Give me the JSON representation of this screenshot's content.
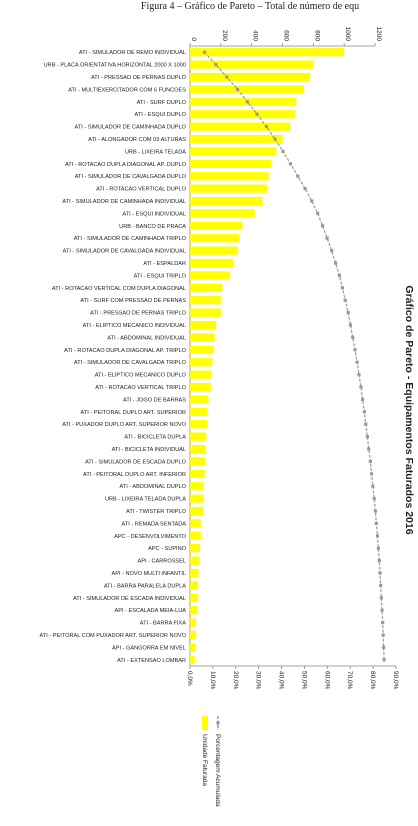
{
  "caption": "Figura 4 – Gráfico de Pareto – Total de número de equ",
  "chart_data": {
    "type": "pareto",
    "title": "Gráfico de Pareto - Equipamentos Faturados 2016",
    "categories": [
      "ATI - SIMULADOR DE REMO INDIVIDUAL",
      "URB - PLACA ORIENTATIVA HORIZONTAL 2000 X 1000",
      "ATI - PRESSAO DE PERNAS DUPLO",
      "ATI - MULTIEXERCITADOR COM 6 FUNCOES",
      "ATI - SURF DUPLO",
      "ATI - ESQUI DUPLO",
      "ATI - SIMULADOR DE CAMINHADA DUPLO",
      "ATI - ALONGADOR COM 03 ALTURAS",
      "URB - LIXEIRA TELADA",
      "ATI - ROTACAO DUPLA DIAGONAL AP. DUPLO",
      "ATI - SIMULADOR DE CAVALGADA DUPLO",
      "ATI - ROTACAO VERTICAL DUPLO",
      "ATI - SIMULADOR DE CAMINHADA INDIVIDUAL",
      "ATI - ESQUI INDIVIDUAL",
      "URB - BANCO DE PRACA",
      "ATI - SIMULADOR DE CAMINHADA TRIPLO",
      "ATI - SIMULADOR DE CAVALGADA INDIVIDUAL",
      "ATI - ESPALDAR",
      "ATI - ESQUI TRIPLO",
      "ATI - ROTACAO VERTICAL COM DUPLA DIAGONAL",
      "ATI - SURF COM PRESSAO DE PERNAS",
      "ATI - PRESSAO DE PERNAS TRIPLO",
      "ATI - ELIPTICO MECANICO INDIVIDUAL",
      "ATI - ABDOMINAL INDIVIDUAL",
      "ATI - ROTACAO DUPLA DIAGONAL AP. TRIPLO",
      "ATI - SIMULADOR DE CAVALGADA TRIPLO",
      "ATI - ELIPTICO MECANICO DUPLO",
      "ATI - ROTACAO VERTICAL TRIPLO",
      "ATI - JOGO DE BARRAS",
      "ATI - PEITORAL DUPLO ART. SUPERIOR",
      "ATI - PUXADOR DUPLO ART. SUPERIOR NOVO",
      "ATI - BICICLETA DUPLA",
      "ATI - BICICLETA INDIVIDUAL",
      "ATI - SIMULADOR DE ESCADA DUPLO",
      "ATI - PEITORAL DUPLO ART. INFERIOR",
      "ATI - ABDOMINAL DUPLO",
      "URB - LIXEIRA TELADA DUPLA",
      "ATI - TWISTER TRIPLO",
      "ATI - REMADA SENTADA",
      "APC - DESENVOLVIMENTO",
      "APC - SUPINO",
      "API - CARROSSEL",
      "API - NOVO MULTI INFANTIL",
      "ATI - BARRA PARALELA DUPLA",
      "ATI - SIMULADOR DE ESCADA INDIVIDUAL",
      "API - ESCALADA MEIA-LUA",
      "ATI - BARRA FIXA",
      "ATI - PEITORAL COM PUXADOR ART. SUPERIOR NOVO",
      "API - GANGORRA EM NIVEL",
      "ATI - EXTENSAO LOMBAR"
    ],
    "series": [
      {
        "name": "Unidade Faturada",
        "color": "#ffff00",
        "values": [
          1000,
          800,
          780,
          740,
          690,
          680,
          650,
          600,
          560,
          530,
          510,
          500,
          470,
          420,
          340,
          320,
          310,
          280,
          260,
          210,
          200,
          200,
          170,
          160,
          150,
          145,
          140,
          135,
          120,
          115,
          110,
          105,
          100,
          100,
          95,
          90,
          90,
          85,
          70,
          70,
          65,
          60,
          55,
          50,
          50,
          45,
          40,
          40,
          35,
          30
        ]
      },
      {
        "name": "Porcentagem Acumulada",
        "color": "#9a9a9a",
        "axis": "y2",
        "values": [
          6.3,
          11.3,
          16.1,
          20.8,
          25.1,
          29.3,
          33.4,
          37.1,
          40.6,
          43.9,
          47.1,
          50.3,
          53.2,
          55.8,
          57.9,
          59.9,
          61.9,
          63.6,
          65.3,
          66.6,
          67.8,
          69.1,
          70.1,
          71.1,
          72.1,
          73.0,
          73.8,
          74.7,
          75.4,
          76.2,
          76.8,
          77.5,
          78.1,
          78.8,
          79.3,
          79.9,
          80.5,
          81.0,
          81.4,
          81.9,
          82.3,
          82.7,
          83.0,
          83.3,
          83.6,
          83.9,
          84.2,
          84.4,
          84.6,
          84.8
        ]
      }
    ],
    "ylim": [
      0,
      1200
    ],
    "yticks": [
      0,
      200,
      400,
      600,
      800,
      1000,
      1200
    ],
    "y2lim": [
      0,
      90
    ],
    "y2ticks": [
      {
        "value": 0,
        "label": "0,0%"
      },
      {
        "value": 10,
        "label": "10,0%"
      },
      {
        "value": 20,
        "label": "20,0%"
      },
      {
        "value": 30,
        "label": "30,0%"
      },
      {
        "value": 40,
        "label": "40,0%"
      },
      {
        "value": 50,
        "label": "50,0%"
      },
      {
        "value": 60,
        "label": "60,0%"
      },
      {
        "value": 70,
        "label": "70,0%"
      },
      {
        "value": 80,
        "label": "80,0%"
      },
      {
        "value": 90,
        "label": "90,0%"
      }
    ]
  }
}
